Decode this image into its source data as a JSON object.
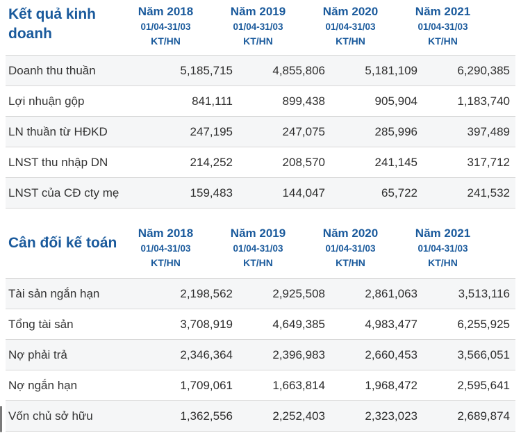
{
  "page": {
    "accent_blue": "#1a5a9c",
    "text_dark": "#333333",
    "stripe_color": "#f5f6f7",
    "divider_color": "#d8d8d8"
  },
  "tables": [
    {
      "title": "Kết quả kinh doanh",
      "columns": [
        {
          "year": "Năm 2018",
          "period": "01/04-31/03",
          "basis": "KT/HN"
        },
        {
          "year": "Năm 2019",
          "period": "01/04-31/03",
          "basis": "KT/HN"
        },
        {
          "year": "Năm 2020",
          "period": "01/04-31/03",
          "basis": "KT/HN"
        },
        {
          "year": "Năm 2021",
          "period": "01/04-31/03",
          "basis": "KT/HN"
        }
      ],
      "rows": [
        {
          "label": "Doanh thu thuần",
          "values": [
            "5,185,715",
            "4,855,806",
            "5,181,109",
            "6,290,385"
          ]
        },
        {
          "label": "Lợi nhuận gộp",
          "values": [
            "841,111",
            "899,438",
            "905,904",
            "1,183,740"
          ]
        },
        {
          "label": "LN thuần từ HĐKD",
          "values": [
            "247,195",
            "247,075",
            "285,996",
            "397,489"
          ]
        },
        {
          "label": "LNST thu nhập DN",
          "values": [
            "214,252",
            "208,570",
            "241,145",
            "317,712"
          ]
        },
        {
          "label": "LNST của CĐ cty mẹ",
          "values": [
            "159,483",
            "144,047",
            "65,722",
            "241,532"
          ]
        }
      ]
    },
    {
      "title": "Cân đối kế toán",
      "columns": [
        {
          "year": "Năm 2018",
          "period": "01/04-31/03",
          "basis": "KT/HN"
        },
        {
          "year": "Năm 2019",
          "period": "01/04-31/03",
          "basis": "KT/HN"
        },
        {
          "year": "Năm 2020",
          "period": "01/04-31/03",
          "basis": "KT/HN"
        },
        {
          "year": "Năm 2021",
          "period": "01/04-31/03",
          "basis": "KT/HN"
        }
      ],
      "rows": [
        {
          "label": "Tài sản ngắn hạn",
          "values": [
            "2,198,562",
            "2,925,508",
            "2,861,063",
            "3,513,116"
          ]
        },
        {
          "label": "Tổng tài sản",
          "values": [
            "3,708,919",
            "4,649,385",
            "4,983,477",
            "6,255,925"
          ]
        },
        {
          "label": "Nợ phải trả",
          "values": [
            "2,346,364",
            "2,396,983",
            "2,660,453",
            "3,566,051"
          ]
        },
        {
          "label": "Nợ ngắn hạn",
          "values": [
            "1,709,061",
            "1,663,814",
            "1,968,472",
            "2,595,641"
          ]
        },
        {
          "label": "Vốn chủ sở hữu",
          "values": [
            "1,362,556",
            "2,252,403",
            "2,323,023",
            "2,689,874"
          ]
        }
      ]
    }
  ]
}
